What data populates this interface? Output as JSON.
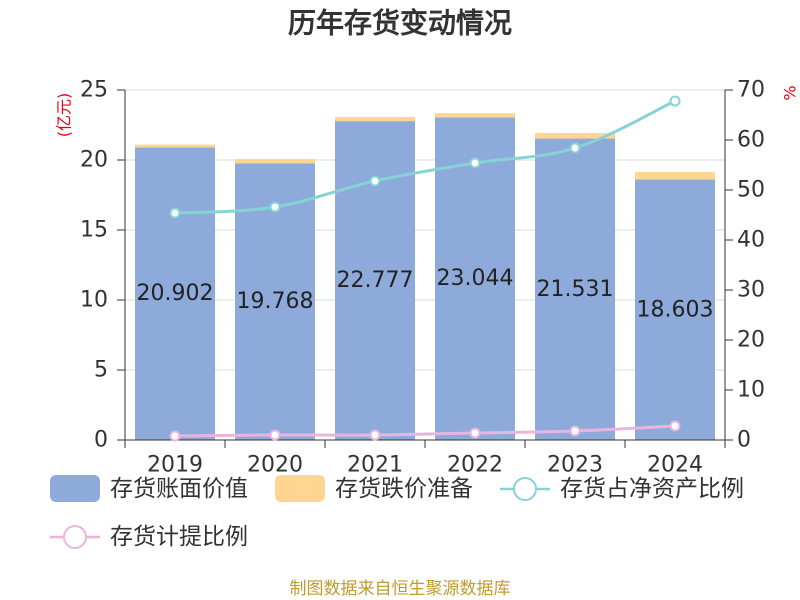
{
  "footer": "制图数据来自恒生聚源数据库",
  "colors": {
    "title": "#333333",
    "axis": "#333333",
    "grid": "#D9D9D9",
    "axis_name": "#E60012",
    "footer": "#C49A2C"
  },
  "chart_data": {
    "type": "bar",
    "title": "历年存货变动情况",
    "categories": [
      "2019",
      "2020",
      "2021",
      "2022",
      "2023",
      "2024"
    ],
    "y_left": {
      "label": "(亿元)",
      "range": [
        0,
        25
      ],
      "ticks": [
        0,
        5,
        10,
        15,
        20,
        25
      ]
    },
    "y_right": {
      "label": "%",
      "range": [
        0,
        70
      ],
      "ticks": [
        0,
        10,
        20,
        30,
        40,
        50,
        60,
        70
      ]
    },
    "series": [
      {
        "name": "存货账面价值",
        "type": "bar",
        "stacked": true,
        "y_axis": "left",
        "color": "#8EAADB",
        "data_labels": true,
        "values": [
          20.902,
          19.768,
          22.777,
          23.044,
          21.531,
          18.603
        ]
      },
      {
        "name": "存货跌价准备",
        "type": "bar",
        "stacked": true,
        "y_axis": "left",
        "color": "#FFD591",
        "data_labels": false,
        "values": [
          0.2,
          0.3,
          0.3,
          0.3,
          0.4,
          0.55
        ]
      },
      {
        "name": "存货占净资产比例",
        "type": "line",
        "y_axis": "right",
        "color": "#86D3D6",
        "values": [
          45.4,
          46.6,
          51.8,
          55.4,
          58.4,
          67.8
        ]
      },
      {
        "name": "存货计提比例",
        "type": "line",
        "y_axis": "right",
        "color": "#E8B6DC",
        "values": [
          0.8,
          1.0,
          1.0,
          1.4,
          1.8,
          2.8
        ]
      }
    ],
    "grid": true,
    "legend_position": "bottom"
  }
}
